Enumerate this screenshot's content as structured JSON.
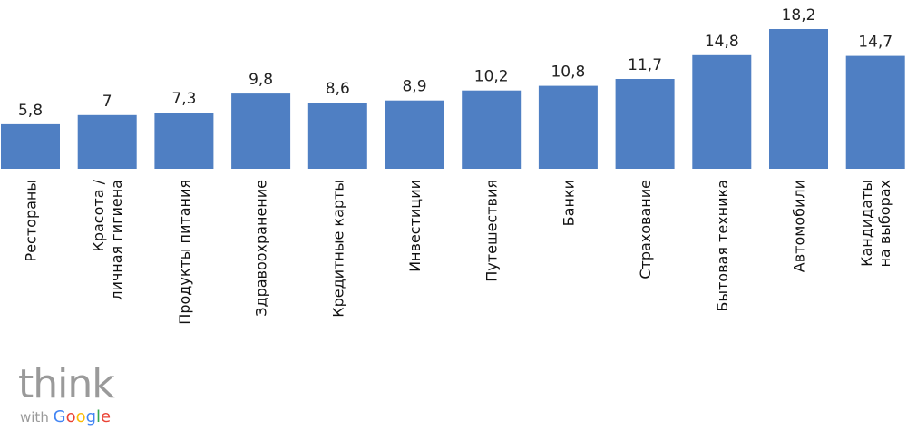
{
  "chart_data": {
    "type": "bar",
    "categories": [
      [
        "Рестораны"
      ],
      [
        "Красота /",
        "личная гигиена"
      ],
      [
        "Продукты питания"
      ],
      [
        "Здравоохранение"
      ],
      [
        "Кредитные карты"
      ],
      [
        "Инвестиции"
      ],
      [
        "Путешествия"
      ],
      [
        "Банки"
      ],
      [
        "Страхование"
      ],
      [
        "Бытовая техника"
      ],
      [
        "Автомобили"
      ],
      [
        "Кандидаты",
        "на выборах"
      ]
    ],
    "values": [
      5.8,
      7,
      7.3,
      9.8,
      8.6,
      8.9,
      10.2,
      10.8,
      11.7,
      14.8,
      18.2,
      14.7
    ],
    "value_labels": [
      "5,8",
      "7",
      "7,3",
      "9,8",
      "8,6",
      "8,9",
      "10,2",
      "10,8",
      "11,7",
      "14,8",
      "18,2",
      "14,7"
    ],
    "bar_color": "#4f7fc3",
    "grid": false,
    "legend": "none",
    "ylim": [
      0,
      18.2
    ]
  },
  "logo": {
    "word": "think",
    "with": "with",
    "google_letters": [
      "G",
      "o",
      "o",
      "g",
      "l",
      "e"
    ]
  }
}
